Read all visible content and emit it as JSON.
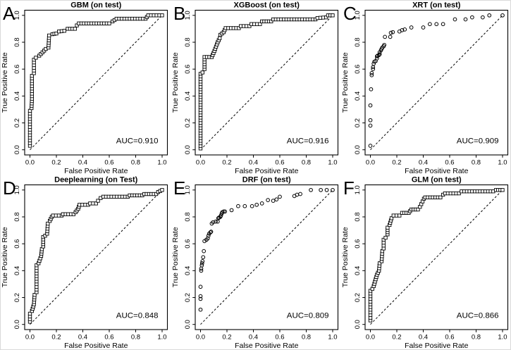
{
  "figure": {
    "background": "#ffffff",
    "stroke_color": "#000000",
    "x_label": "False Positive Rate",
    "y_label": "True Positive Rate",
    "x_ticks": [
      "0.0",
      "0.2",
      "0.4",
      "0.6",
      "0.8",
      "1.0"
    ],
    "y_ticks": [
      "0.0",
      "0.2",
      "0.4",
      "0.6",
      "0.8",
      "1.0"
    ],
    "grid": "off",
    "legend": "none"
  },
  "chart_data": [
    {
      "panel": "A",
      "type": "scatter",
      "subtype": "roc-curve",
      "marker": "open-square-chain",
      "title": "GBM (on test)",
      "auc": 0.91,
      "auc_label": "AUC=0.910",
      "xlabel": "False Positive Rate",
      "ylabel": "True Positive Rate",
      "xlim": [
        0.0,
        1.0
      ],
      "ylim": [
        0.0,
        1.0
      ],
      "diagonal": "dashed identity line",
      "points": [
        [
          0.0,
          0.03
        ],
        [
          0.0,
          0.29
        ],
        [
          0.012,
          0.31
        ],
        [
          0.015,
          0.38
        ],
        [
          0.015,
          0.55
        ],
        [
          0.03,
          0.57
        ],
        [
          0.03,
          0.67
        ],
        [
          0.045,
          0.685
        ],
        [
          0.07,
          0.7
        ],
        [
          0.12,
          0.75
        ],
        [
          0.14,
          0.76
        ],
        [
          0.145,
          0.85
        ],
        [
          0.17,
          0.86
        ],
        [
          0.2,
          0.865
        ],
        [
          0.22,
          0.88
        ],
        [
          0.26,
          0.885
        ],
        [
          0.285,
          0.9
        ],
        [
          0.34,
          0.9
        ],
        [
          0.355,
          0.925
        ],
        [
          0.37,
          0.94
        ],
        [
          0.6,
          0.94
        ],
        [
          0.625,
          0.955
        ],
        [
          0.655,
          0.975
        ],
        [
          0.875,
          0.975
        ],
        [
          0.895,
          1.0
        ],
        [
          1.0,
          1.0
        ]
      ]
    },
    {
      "panel": "B",
      "type": "scatter",
      "subtype": "roc-curve",
      "marker": "open-square-chain",
      "title": "XGBoost (on test)",
      "auc": 0.916,
      "auc_label": "AUC=0.916",
      "xlabel": "False Positive Rate",
      "ylabel": "True Positive Rate",
      "xlim": [
        0.0,
        1.0
      ],
      "ylim": [
        0.0,
        1.0
      ],
      "diagonal": "dashed identity line",
      "points": [
        [
          0.0,
          0.01
        ],
        [
          0.0,
          0.565
        ],
        [
          0.015,
          0.575
        ],
        [
          0.03,
          0.6
        ],
        [
          0.03,
          0.69
        ],
        [
          0.085,
          0.69
        ],
        [
          0.105,
          0.735
        ],
        [
          0.13,
          0.8
        ],
        [
          0.145,
          0.83
        ],
        [
          0.15,
          0.855
        ],
        [
          0.175,
          0.875
        ],
        [
          0.19,
          0.905
        ],
        [
          0.29,
          0.905
        ],
        [
          0.305,
          0.92
        ],
        [
          0.37,
          0.92
        ],
        [
          0.385,
          0.935
        ],
        [
          0.45,
          0.935
        ],
        [
          0.465,
          0.955
        ],
        [
          0.535,
          0.955
        ],
        [
          0.55,
          0.97
        ],
        [
          0.87,
          0.97
        ],
        [
          0.885,
          0.98
        ],
        [
          0.95,
          0.985
        ],
        [
          0.965,
          1.0
        ],
        [
          1.0,
          1.0
        ]
      ]
    },
    {
      "panel": "C",
      "type": "scatter",
      "subtype": "roc-curve",
      "marker": "open-circle",
      "title": "XRT (on test)",
      "auc": 0.909,
      "auc_label": "AUC=0.909",
      "xlabel": "False Positive Rate",
      "ylabel": "True Positive Rate",
      "xlim": [
        0.0,
        1.0
      ],
      "ylim": [
        0.0,
        1.0
      ],
      "diagonal": "dashed identity line",
      "points": [
        [
          0.0,
          0.03
        ],
        [
          0.0,
          0.18
        ],
        [
          0.0,
          0.22
        ],
        [
          0.0,
          0.33
        ],
        [
          0.005,
          0.45
        ],
        [
          0.01,
          0.555
        ],
        [
          0.01,
          0.57
        ],
        [
          0.02,
          0.6
        ],
        [
          0.02,
          0.615
        ],
        [
          0.025,
          0.64
        ],
        [
          0.03,
          0.655
        ],
        [
          0.04,
          0.66
        ],
        [
          0.05,
          0.68
        ],
        [
          0.05,
          0.695
        ],
        [
          0.055,
          0.7
        ],
        [
          0.065,
          0.705
        ],
        [
          0.07,
          0.71
        ],
        [
          0.07,
          0.725
        ],
        [
          0.08,
          0.74
        ],
        [
          0.085,
          0.75
        ],
        [
          0.09,
          0.76
        ],
        [
          0.1,
          0.77
        ],
        [
          0.105,
          0.78
        ],
        [
          0.11,
          0.84
        ],
        [
          0.15,
          0.84
        ],
        [
          0.155,
          0.87
        ],
        [
          0.17,
          0.875
        ],
        [
          0.22,
          0.88
        ],
        [
          0.24,
          0.89
        ],
        [
          0.26,
          0.895
        ],
        [
          0.31,
          0.91
        ],
        [
          0.4,
          0.91
        ],
        [
          0.45,
          0.935
        ],
        [
          0.5,
          0.935
        ],
        [
          0.55,
          0.935
        ],
        [
          0.64,
          0.97
        ],
        [
          0.72,
          0.97
        ],
        [
          0.77,
          0.985
        ],
        [
          0.85,
          0.985
        ],
        [
          0.9,
          1.0
        ],
        [
          1.0,
          1.0
        ]
      ]
    },
    {
      "panel": "D",
      "type": "scatter",
      "subtype": "roc-curve",
      "marker": "open-square-chain",
      "title": "Deeplearning (on Test)",
      "auc": 0.848,
      "auc_label": "AUC=0.848",
      "xlabel": "False Positive Rate",
      "ylabel": "True Positive Rate",
      "xlim": [
        0.0,
        1.0
      ],
      "ylim": [
        0.0,
        1.0
      ],
      "diagonal": "dashed identity line",
      "points": [
        [
          0.0,
          0.02
        ],
        [
          0.0,
          0.08
        ],
        [
          0.015,
          0.1
        ],
        [
          0.03,
          0.15
        ],
        [
          0.035,
          0.22
        ],
        [
          0.05,
          0.24
        ],
        [
          0.05,
          0.44
        ],
        [
          0.065,
          0.455
        ],
        [
          0.085,
          0.51
        ],
        [
          0.09,
          0.56
        ],
        [
          0.1,
          0.58
        ],
        [
          0.1,
          0.65
        ],
        [
          0.115,
          0.66
        ],
        [
          0.13,
          0.675
        ],
        [
          0.135,
          0.75
        ],
        [
          0.15,
          0.77
        ],
        [
          0.165,
          0.8
        ],
        [
          0.175,
          0.81
        ],
        [
          0.24,
          0.81
        ],
        [
          0.25,
          0.82
        ],
        [
          0.33,
          0.82
        ],
        [
          0.345,
          0.835
        ],
        [
          0.365,
          0.86
        ],
        [
          0.375,
          0.89
        ],
        [
          0.44,
          0.89
        ],
        [
          0.455,
          0.9
        ],
        [
          0.5,
          0.9
        ],
        [
          0.515,
          0.92
        ],
        [
          0.535,
          0.94
        ],
        [
          0.555,
          0.95
        ],
        [
          0.74,
          0.95
        ],
        [
          0.755,
          0.96
        ],
        [
          0.85,
          0.96
        ],
        [
          0.865,
          0.97
        ],
        [
          0.955,
          0.97
        ],
        [
          0.97,
          0.985
        ],
        [
          1.0,
          1.0
        ]
      ]
    },
    {
      "panel": "E",
      "type": "scatter",
      "subtype": "roc-curve",
      "marker": "open-circle",
      "title": "DRF (on test)",
      "auc": 0.809,
      "auc_label": "AUC=0.809",
      "xlabel": "False Positive Rate",
      "ylabel": "True Positive Rate",
      "xlim": [
        0.0,
        1.0
      ],
      "ylim": [
        0.0,
        1.0
      ],
      "diagonal": "dashed identity line",
      "points": [
        [
          0.0,
          0.11
        ],
        [
          0.0,
          0.19
        ],
        [
          0.0,
          0.21
        ],
        [
          0.0,
          0.28
        ],
        [
          0.005,
          0.4
        ],
        [
          0.005,
          0.415
        ],
        [
          0.01,
          0.44
        ],
        [
          0.012,
          0.455
        ],
        [
          0.015,
          0.47
        ],
        [
          0.02,
          0.5
        ],
        [
          0.025,
          0.545
        ],
        [
          0.03,
          0.62
        ],
        [
          0.045,
          0.63
        ],
        [
          0.055,
          0.64
        ],
        [
          0.06,
          0.66
        ],
        [
          0.065,
          0.675
        ],
        [
          0.075,
          0.685
        ],
        [
          0.08,
          0.69
        ],
        [
          0.085,
          0.75
        ],
        [
          0.095,
          0.76
        ],
        [
          0.115,
          0.765
        ],
        [
          0.13,
          0.765
        ],
        [
          0.135,
          0.79
        ],
        [
          0.14,
          0.795
        ],
        [
          0.15,
          0.8
        ],
        [
          0.155,
          0.81
        ],
        [
          0.16,
          0.825
        ],
        [
          0.165,
          0.835
        ],
        [
          0.175,
          0.84
        ],
        [
          0.185,
          0.84
        ],
        [
          0.235,
          0.85
        ],
        [
          0.285,
          0.88
        ],
        [
          0.335,
          0.88
        ],
        [
          0.39,
          0.88
        ],
        [
          0.425,
          0.89
        ],
        [
          0.465,
          0.9
        ],
        [
          0.51,
          0.925
        ],
        [
          0.55,
          0.92
        ],
        [
          0.575,
          0.93
        ],
        [
          0.6,
          0.95
        ],
        [
          0.71,
          0.955
        ],
        [
          0.73,
          0.965
        ],
        [
          0.755,
          0.97
        ],
        [
          0.835,
          1.0
        ],
        [
          0.91,
          1.0
        ],
        [
          0.955,
          1.0
        ],
        [
          1.0,
          1.0
        ]
      ]
    },
    {
      "panel": "F",
      "type": "scatter",
      "subtype": "roc-curve",
      "marker": "open-square-chain",
      "title": "GLM (on test)",
      "auc": 0.866,
      "auc_label": "AUC=0.866",
      "xlabel": "False Positive Rate",
      "ylabel": "True Positive Rate",
      "xlim": [
        0.0,
        1.0
      ],
      "ylim": [
        0.0,
        1.0
      ],
      "diagonal": "dashed identity line",
      "points": [
        [
          0.0,
          0.03
        ],
        [
          0.0,
          0.25
        ],
        [
          0.015,
          0.265
        ],
        [
          0.025,
          0.285
        ],
        [
          0.05,
          0.37
        ],
        [
          0.065,
          0.4
        ],
        [
          0.07,
          0.455
        ],
        [
          0.085,
          0.47
        ],
        [
          0.09,
          0.545
        ],
        [
          0.1,
          0.565
        ],
        [
          0.1,
          0.63
        ],
        [
          0.115,
          0.645
        ],
        [
          0.13,
          0.67
        ],
        [
          0.13,
          0.72
        ],
        [
          0.145,
          0.74
        ],
        [
          0.16,
          0.79
        ],
        [
          0.175,
          0.81
        ],
        [
          0.22,
          0.81
        ],
        [
          0.24,
          0.83
        ],
        [
          0.29,
          0.83
        ],
        [
          0.31,
          0.855
        ],
        [
          0.36,
          0.855
        ],
        [
          0.375,
          0.875
        ],
        [
          0.395,
          0.915
        ],
        [
          0.405,
          0.935
        ],
        [
          0.415,
          0.945
        ],
        [
          0.53,
          0.945
        ],
        [
          0.55,
          0.965
        ],
        [
          0.565,
          0.975
        ],
        [
          0.67,
          0.975
        ],
        [
          0.69,
          0.99
        ],
        [
          0.93,
          0.99
        ],
        [
          0.95,
          1.0
        ],
        [
          1.0,
          1.0
        ]
      ]
    }
  ]
}
